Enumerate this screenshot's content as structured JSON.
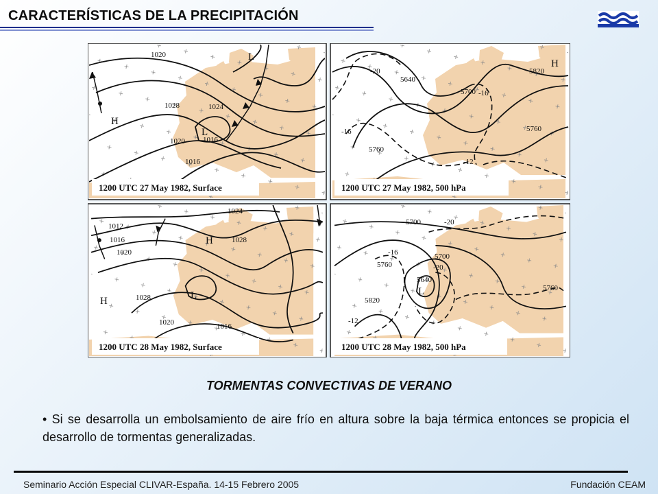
{
  "slide": {
    "title": "CARACTERÍSTICAS DE LA PRECIPITACIÓN",
    "subtitle": "TORMENTAS CONVECTIVAS DE VERANO",
    "bullet": "• Si se desarrolla un embolsamiento de aire frío en altura sobre la baja térmica entonces se propicia el desarrollo de tormentas generalizadas.",
    "footer_left": "Seminario Acción Especial CLIVAR-España. 14-15 Febrero 2005",
    "footer_right": "Fundación CEAM"
  },
  "colors": {
    "land": "#f2d3ae",
    "sea": "#ffffff",
    "title_rule": "#1f2f8c",
    "logo": "#1a3aa8"
  },
  "icons": {
    "logo": "wave-logo-icon"
  },
  "maps": [
    {
      "caption": "1200 UTC 27 May 1982, Surface",
      "labels": [
        "1020",
        "L",
        "1028",
        "1024",
        "H",
        "L",
        "1016",
        "1020",
        "1016"
      ]
    },
    {
      "caption": "1200 UTC 27 May 1982, 500 hPa",
      "labels": [
        "-20",
        "5640",
        "5820",
        "H",
        "5700",
        "-16",
        "-16",
        "5760",
        "5760",
        "-12"
      ]
    },
    {
      "caption": "1200 UTC 28 May 1982, Surface",
      "labels": [
        "1024",
        "1012",
        "1016",
        "H",
        "1028",
        "1020",
        "H",
        "1028",
        "L",
        "1020",
        "1016"
      ]
    },
    {
      "caption": "1200 UTC 28 May 1982, 500 hPa",
      "labels": [
        "5700",
        "-20",
        "-16",
        "5760",
        "5700",
        "-20",
        "5640",
        "L",
        "5820",
        "-12",
        "5760"
      ]
    }
  ]
}
